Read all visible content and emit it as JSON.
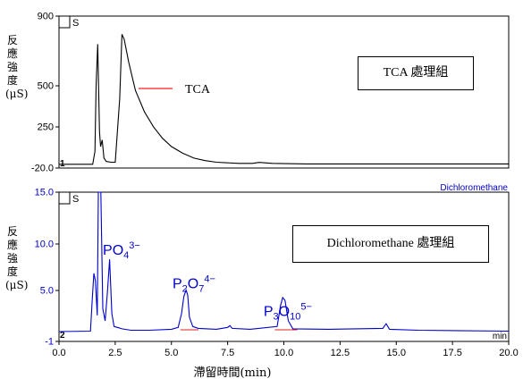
{
  "chart_data": [
    {
      "type": "line",
      "panel": "top",
      "ylabel": "反應強度(μS)",
      "ylim": [
        -20,
        900
      ],
      "xlim": [
        0,
        20
      ],
      "y_ticks": [
        "900",
        "500",
        "250",
        "-20.0"
      ],
      "trace_marker": "S",
      "channel_label": "1",
      "box_label": "TCA 處理組",
      "legend_entry": "TCA",
      "series": [
        {
          "name": "TCA",
          "color": "#000000",
          "x": [
            0,
            1.5,
            1.6,
            1.65,
            1.72,
            1.8,
            1.85,
            1.92,
            2.0,
            2.1,
            2.3,
            2.5,
            2.7,
            2.8,
            2.9,
            3.1,
            3.4,
            3.8,
            4.2,
            4.6,
            5.0,
            5.5,
            6.0,
            6.5,
            7.0,
            8.0,
            8.6,
            8.9,
            9.5,
            11,
            14,
            20
          ],
          "y": [
            3,
            3,
            80,
            480,
            730,
            200,
            110,
            150,
            40,
            20,
            15,
            15,
            400,
            790,
            760,
            620,
            450,
            320,
            230,
            160,
            110,
            70,
            40,
            25,
            15,
            8,
            8,
            14,
            8,
            5,
            5,
            5
          ]
        }
      ]
    },
    {
      "type": "line",
      "panel": "bottom",
      "ylabel": "反應強度(μS)",
      "xlabel": "滯留時間(min)",
      "xunit": "min",
      "ylim": [
        -1,
        15
      ],
      "xlim": [
        0,
        20
      ],
      "y_ticks": [
        "15.0",
        "10.0",
        "5.0",
        "-1"
      ],
      "x_ticks": [
        "0.0",
        "2.5",
        "5.0",
        "7.5",
        "10.0",
        "12.5",
        "15.0",
        "17.5",
        "20.0"
      ],
      "trace_marker": "S",
      "channel_label": "2",
      "series_label": "Dichloromethane",
      "box_label": "Dichloromethane 處理組",
      "series": [
        {
          "name": "Dichloromethane",
          "color": "#0000cc",
          "x": [
            0,
            1.4,
            1.48,
            1.55,
            1.62,
            1.7,
            1.75,
            1.8,
            1.86,
            1.95,
            2.05,
            2.15,
            2.25,
            2.35,
            2.45,
            2.6,
            2.8,
            3.2,
            4.0,
            5.0,
            5.3,
            5.45,
            5.55,
            5.65,
            5.72,
            5.8,
            5.95,
            6.2,
            7.0,
            7.5,
            7.6,
            7.7,
            8.5,
            9.7,
            9.85,
            9.95,
            10.05,
            10.2,
            10.4,
            12.0,
            14.4,
            14.55,
            14.7,
            16.0,
            20.0
          ],
          "y": [
            0.05,
            0.1,
            3.5,
            6.3,
            5.5,
            1.8,
            15,
            15,
            15,
            2.5,
            1.2,
            4.2,
            7.8,
            2.0,
            0.6,
            0.5,
            0.35,
            0.2,
            0.2,
            0.3,
            0.5,
            2.0,
            3.8,
            4.5,
            4.0,
            1.6,
            0.6,
            0.4,
            0.3,
            0.5,
            0.7,
            0.4,
            0.3,
            0.6,
            2.8,
            3.7,
            3.4,
            1.2,
            0.35,
            0.3,
            0.4,
            0.9,
            0.3,
            0.2,
            0.1
          ]
        }
      ],
      "peak_labels": [
        {
          "x": 1.95,
          "y": 8.3,
          "base": "PO",
          "sub": "4",
          "sup": "3−"
        },
        {
          "x": 5.05,
          "y": 4.7,
          "base": "P",
          "sub": "2",
          "mid": "O",
          "sub2": "7",
          "sup": "4−"
        },
        {
          "x": 9.1,
          "y": 1.75,
          "base": "P",
          "sub": "3",
          "mid": "O",
          "sub2": "10",
          "sup": "5−"
        }
      ]
    }
  ]
}
